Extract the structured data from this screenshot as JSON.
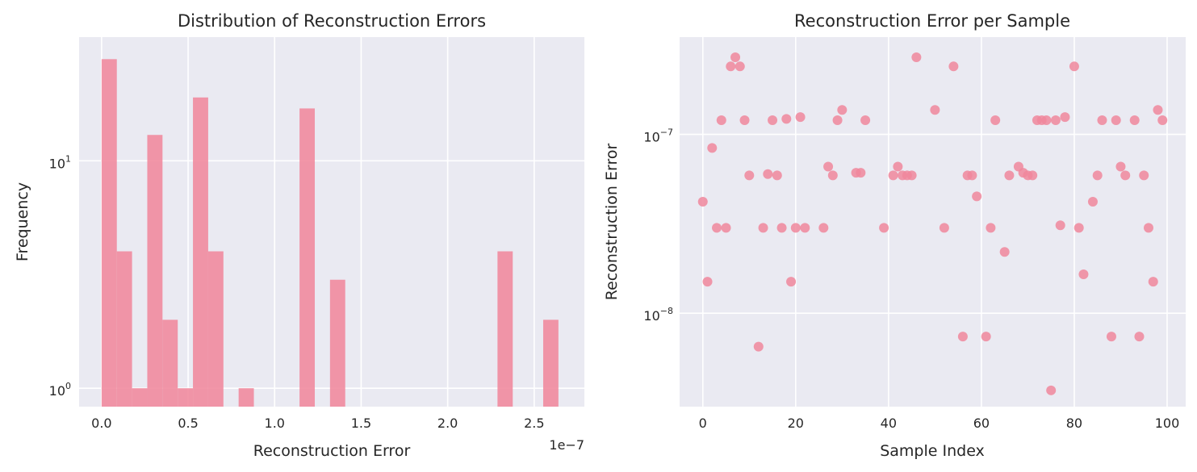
{
  "chart_data": [
    {
      "type": "bar",
      "title": "Distribution of Reconstruction Errors",
      "xlabel": "Reconstruction Error",
      "ylabel": "Frequency",
      "x_offset_label": "1e−7",
      "xlim": [
        -1.3e-08,
        2.79e-07
      ],
      "xticks": [
        0,
        5e-08,
        1e-07,
        1.5e-07,
        2e-07,
        2.5e-07
      ],
      "xtick_labels": [
        "0.0",
        "0.5",
        "1.0",
        "1.5",
        "2.0",
        "2.5"
      ],
      "yscale": "log",
      "ylim": [
        0.83,
        35
      ],
      "yticks": [
        1,
        10
      ],
      "ytick_labels": [
        {
          "base": "10",
          "exp": "0"
        },
        {
          "base": "10",
          "exp": "1"
        }
      ],
      "grid": true,
      "color": "#f0879c",
      "bins": [
        {
          "x0": 0.0,
          "x1": 8.8e-09,
          "count": 28
        },
        {
          "x0": 8.8e-09,
          "x1": 1.76e-08,
          "count": 4
        },
        {
          "x0": 1.76e-08,
          "x1": 2.64e-08,
          "count": 1
        },
        {
          "x0": 2.64e-08,
          "x1": 3.52e-08,
          "count": 13
        },
        {
          "x0": 3.52e-08,
          "x1": 4.4e-08,
          "count": 2
        },
        {
          "x0": 4.4e-08,
          "x1": 5.28e-08,
          "count": 1
        },
        {
          "x0": 5.28e-08,
          "x1": 6.16e-08,
          "count": 19
        },
        {
          "x0": 6.16e-08,
          "x1": 7.04e-08,
          "count": 4
        },
        {
          "x0": 7.92e-08,
          "x1": 8.8e-08,
          "count": 1
        },
        {
          "x0": 1.144e-07,
          "x1": 1.232e-07,
          "count": 17
        },
        {
          "x0": 1.32e-07,
          "x1": 1.408e-07,
          "count": 3
        },
        {
          "x0": 2.288e-07,
          "x1": 2.376e-07,
          "count": 4
        },
        {
          "x0": 2.552e-07,
          "x1": 2.64e-07,
          "count": 2
        }
      ]
    },
    {
      "type": "scatter",
      "title": "Reconstruction Error per Sample",
      "xlabel": "Sample Index",
      "ylabel": "Reconstruction Error",
      "xlim": [
        -5,
        104
      ],
      "xticks": [
        0,
        20,
        40,
        60,
        80,
        100
      ],
      "xtick_labels": [
        "0",
        "20",
        "40",
        "60",
        "80",
        "100"
      ],
      "yscale": "log",
      "ylim": [
        3e-09,
        3.5e-07
      ],
      "yticks": [
        1e-08,
        1e-07
      ],
      "ytick_labels": [
        {
          "base": "10",
          "exp": "−8"
        },
        {
          "base": "10",
          "exp": "−7"
        }
      ],
      "grid": true,
      "color": "#f0879c",
      "points": [
        [
          0,
          4.2e-08
        ],
        [
          1,
          1.5e-08
        ],
        [
          2,
          8.4e-08
        ],
        [
          3,
          3e-08
        ],
        [
          4,
          1.2e-07
        ],
        [
          5,
          3e-08
        ],
        [
          6,
          2.4e-07
        ],
        [
          7,
          2.7e-07
        ],
        [
          8,
          2.4e-07
        ],
        [
          9,
          1.2e-07
        ],
        [
          10,
          5.9e-08
        ],
        [
          12,
          6.5e-09
        ],
        [
          13,
          3e-08
        ],
        [
          14,
          6e-08
        ],
        [
          15,
          1.2e-07
        ],
        [
          16,
          5.9e-08
        ],
        [
          17,
          3e-08
        ],
        [
          18,
          1.22e-07
        ],
        [
          19,
          1.5e-08
        ],
        [
          20,
          3e-08
        ],
        [
          21,
          1.25e-07
        ],
        [
          22,
          3e-08
        ],
        [
          26,
          3e-08
        ],
        [
          27,
          6.6e-08
        ],
        [
          28,
          5.9e-08
        ],
        [
          29,
          1.2e-07
        ],
        [
          30,
          1.37e-07
        ],
        [
          33,
          6.1e-08
        ],
        [
          34,
          6.1e-08
        ],
        [
          35,
          1.2e-07
        ],
        [
          39,
          3e-08
        ],
        [
          41,
          5.9e-08
        ],
        [
          42,
          6.6e-08
        ],
        [
          43,
          5.9e-08
        ],
        [
          44,
          5.9e-08
        ],
        [
          45,
          5.9e-08
        ],
        [
          46,
          2.7e-07
        ],
        [
          50,
          1.37e-07
        ],
        [
          52,
          3e-08
        ],
        [
          54,
          2.4e-07
        ],
        [
          56,
          7.4e-09
        ],
        [
          57,
          5.9e-08
        ],
        [
          58,
          5.9e-08
        ],
        [
          59,
          4.5e-08
        ],
        [
          61,
          7.4e-09
        ],
        [
          62,
          3e-08
        ],
        [
          63,
          1.2e-07
        ],
        [
          65,
          2.2e-08
        ],
        [
          66,
          5.9e-08
        ],
        [
          68,
          6.6e-08
        ],
        [
          69,
          6.1e-08
        ],
        [
          70,
          5.9e-08
        ],
        [
          71,
          5.9e-08
        ],
        [
          72,
          1.2e-07
        ],
        [
          73,
          1.2e-07
        ],
        [
          74,
          1.2e-07
        ],
        [
          75,
          3.7e-09
        ],
        [
          76,
          1.2e-07
        ],
        [
          77,
          3.1e-08
        ],
        [
          78,
          1.25e-07
        ],
        [
          80,
          2.4e-07
        ],
        [
          81,
          3e-08
        ],
        [
          82,
          1.65e-08
        ],
        [
          84,
          4.2e-08
        ],
        [
          85,
          5.9e-08
        ],
        [
          86,
          1.2e-07
        ],
        [
          88,
          7.4e-09
        ],
        [
          89,
          1.2e-07
        ],
        [
          90,
          6.6e-08
        ],
        [
          91,
          5.9e-08
        ],
        [
          93,
          1.2e-07
        ],
        [
          94,
          7.4e-09
        ],
        [
          95,
          5.9e-08
        ],
        [
          96,
          3e-08
        ],
        [
          97,
          1.5e-08
        ],
        [
          98,
          1.37e-07
        ],
        [
          99,
          1.2e-07
        ]
      ]
    }
  ]
}
